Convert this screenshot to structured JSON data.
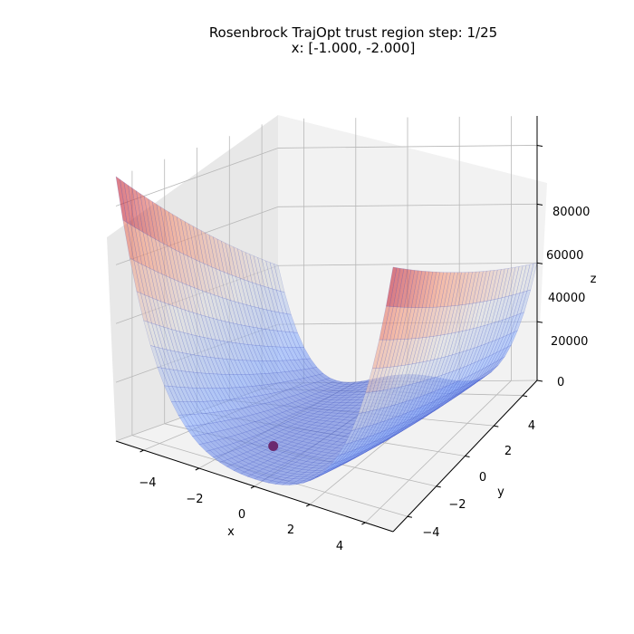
{
  "chart_data": {
    "type": "surface",
    "title_line1": "Rosenbrock TrajOpt trust region step: 1/25",
    "title_line2": "x: [-1.000, -2.000]",
    "function": "rosenbrock",
    "x_range": [
      -5,
      5
    ],
    "y_range": [
      -5,
      5
    ],
    "z_range": [
      0,
      90000
    ],
    "xlabel": "x",
    "ylabel": "y",
    "zlabel": "z",
    "x_ticks": [
      "−4",
      "−2",
      "0",
      "2",
      "4"
    ],
    "y_ticks": [
      "−4",
      "−2",
      "0",
      "2",
      "4"
    ],
    "z_ticks": [
      "0",
      "20000",
      "40000",
      "60000",
      "80000"
    ],
    "grid": true,
    "colormap": "coolwarm",
    "current_point": {
      "x": -1.0,
      "y": -2.0,
      "z": 900
    },
    "point_color": "#6b2a6e",
    "step": 1,
    "total_steps": 25
  }
}
